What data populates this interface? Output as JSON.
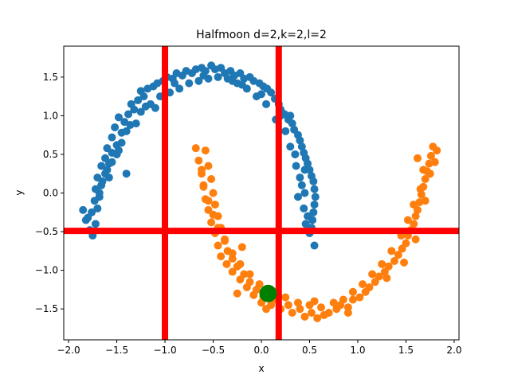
{
  "chart_data": {
    "type": "scatter",
    "title": "Halfmoon d=2,k=2,l=2",
    "xlabel": "x",
    "ylabel": "y",
    "xlim": [
      -2.05,
      2.05
    ],
    "ylim": [
      -1.9,
      1.9
    ],
    "xticks": [
      -2.0,
      -1.5,
      -1.0,
      -0.5,
      0.0,
      0.5,
      1.0,
      1.5,
      2.0
    ],
    "xtick_labels": [
      "−2.0",
      "−1.5",
      "−1.0",
      "−0.5",
      "0.0",
      "0.5",
      "1.0",
      "1.5",
      "2.0"
    ],
    "yticks": [
      -1.5,
      -1.0,
      -0.5,
      0.0,
      0.5,
      1.0,
      1.5
    ],
    "ytick_labels": [
      "−1.5",
      "−1.0",
      "−0.5",
      "0.0",
      "0.5",
      "1.0",
      "1.5"
    ],
    "grid": false,
    "series": [
      {
        "color": "#1f77b4",
        "points": [
          [
            -1.85,
            -0.22
          ],
          [
            -1.82,
            -0.35
          ],
          [
            -1.78,
            -0.48
          ],
          [
            -1.75,
            -0.55
          ],
          [
            -1.72,
            -0.4
          ],
          [
            -1.7,
            -0.2
          ],
          [
            -1.68,
            -0.05
          ],
          [
            -1.72,
            0.05
          ],
          [
            -1.66,
            0.1
          ],
          [
            -1.7,
            0.2
          ],
          [
            -1.62,
            0.25
          ],
          [
            -1.66,
            0.35
          ],
          [
            -1.58,
            0.38
          ],
          [
            -1.62,
            0.45
          ],
          [
            -1.55,
            0.52
          ],
          [
            -1.6,
            0.58
          ],
          [
            -1.5,
            0.62
          ],
          [
            -1.55,
            0.72
          ],
          [
            -1.45,
            0.78
          ],
          [
            -1.52,
            0.85
          ],
          [
            -1.42,
            0.92
          ],
          [
            -1.48,
            0.98
          ],
          [
            -1.38,
            1.02
          ],
          [
            -1.32,
            1.08
          ],
          [
            -1.35,
            1.15
          ],
          [
            -1.28,
            1.2
          ],
          [
            -1.22,
            1.25
          ],
          [
            -1.25,
            1.32
          ],
          [
            -1.18,
            1.35
          ],
          [
            -1.12,
            1.38
          ],
          [
            -1.08,
            1.42
          ],
          [
            -1.02,
            1.45
          ],
          [
            -0.98,
            1.5
          ],
          [
            -0.92,
            1.48
          ],
          [
            -0.88,
            1.55
          ],
          [
            -0.82,
            1.52
          ],
          [
            -0.78,
            1.58
          ],
          [
            -0.72,
            1.55
          ],
          [
            -0.68,
            1.6
          ],
          [
            -0.62,
            1.62
          ],
          [
            -0.58,
            1.58
          ],
          [
            -0.52,
            1.65
          ],
          [
            -0.48,
            1.6
          ],
          [
            -0.42,
            1.62
          ],
          [
            -0.38,
            1.55
          ],
          [
            -0.32,
            1.58
          ],
          [
            -0.28,
            1.52
          ],
          [
            -0.22,
            1.55
          ],
          [
            -0.18,
            1.48
          ],
          [
            -0.12,
            1.5
          ],
          [
            -0.08,
            1.45
          ],
          [
            -0.02,
            1.42
          ],
          [
            0.02,
            1.38
          ],
          [
            0.06,
            1.35
          ],
          [
            0.1,
            1.3
          ],
          [
            0.14,
            1.22
          ],
          [
            0.18,
            1.15
          ],
          [
            0.2,
            1.08
          ],
          [
            0.24,
            1.02
          ],
          [
            0.28,
            0.95
          ],
          [
            0.32,
            0.9
          ],
          [
            0.34,
            0.82
          ],
          [
            0.38,
            0.75
          ],
          [
            0.4,
            0.68
          ],
          [
            0.42,
            0.6
          ],
          [
            0.44,
            0.52
          ],
          [
            0.46,
            0.45
          ],
          [
            0.48,
            0.38
          ],
          [
            0.5,
            0.3
          ],
          [
            0.52,
            0.22
          ],
          [
            0.54,
            0.15
          ],
          [
            0.55,
            0.05
          ],
          [
            0.56,
            -0.05
          ],
          [
            0.55,
            -0.15
          ],
          [
            0.54,
            -0.25
          ],
          [
            0.53,
            -0.35
          ],
          [
            0.52,
            -0.45
          ],
          [
            0.5,
            -0.52
          ],
          [
            0.46,
            -0.4
          ],
          [
            0.48,
            -0.3
          ],
          [
            0.44,
            -0.2
          ],
          [
            0.45,
            0.0
          ],
          [
            0.42,
            0.1
          ],
          [
            0.4,
            0.2
          ],
          [
            0.36,
            0.35
          ],
          [
            0.3,
            0.6
          ],
          [
            0.25,
            0.8
          ],
          [
            0.15,
            0.95
          ],
          [
            0.05,
            1.15
          ],
          [
            -0.05,
            1.25
          ],
          [
            -0.15,
            1.35
          ],
          [
            -0.25,
            1.42
          ],
          [
            -0.35,
            1.48
          ],
          [
            -0.45,
            1.5
          ],
          [
            -0.55,
            1.48
          ],
          [
            -0.65,
            1.45
          ],
          [
            -0.75,
            1.42
          ],
          [
            -0.85,
            1.35
          ],
          [
            -0.95,
            1.3
          ],
          [
            -1.05,
            1.25
          ],
          [
            -1.15,
            1.15
          ],
          [
            -1.25,
            1.05
          ],
          [
            -1.3,
            0.9
          ],
          [
            -1.4,
            0.8
          ],
          [
            -1.45,
            0.65
          ],
          [
            -1.5,
            0.5
          ],
          [
            -1.55,
            0.4
          ],
          [
            -1.6,
            0.3
          ],
          [
            -1.65,
            0.15
          ],
          [
            -1.68,
            0.0
          ],
          [
            -1.73,
            -0.1
          ],
          [
            -1.76,
            -0.25
          ],
          [
            -1.8,
            -0.32
          ],
          [
            -1.4,
            0.25
          ],
          [
            -1.1,
            1.1
          ],
          [
            -0.2,
            1.4
          ],
          [
            0.3,
            1.0
          ],
          [
            0.35,
            0.5
          ],
          [
            0.38,
            -0.05
          ],
          [
            0.55,
            -0.68
          ],
          [
            -1.58,
            0.2
          ],
          [
            -1.48,
            0.55
          ],
          [
            -1.36,
            0.88
          ],
          [
            -1.2,
            1.12
          ],
          [
            -0.9,
            1.42
          ],
          [
            -0.6,
            1.52
          ],
          [
            -0.3,
            1.45
          ],
          [
            0.0,
            1.28
          ],
          [
            0.2,
            1.0
          ],
          [
            0.45,
            0.3
          ]
        ]
      },
      {
        "color": "#ff7f0e",
        "points": [
          [
            -0.68,
            0.58
          ],
          [
            -0.58,
            0.55
          ],
          [
            -0.65,
            0.42
          ],
          [
            -0.55,
            0.35
          ],
          [
            -0.62,
            0.25
          ],
          [
            -0.52,
            0.18
          ],
          [
            -0.6,
            0.08
          ],
          [
            -0.5,
            0.0
          ],
          [
            -0.58,
            -0.08
          ],
          [
            -0.48,
            -0.15
          ],
          [
            -0.55,
            -0.22
          ],
          [
            -0.45,
            -0.3
          ],
          [
            -0.52,
            -0.38
          ],
          [
            -0.42,
            -0.45
          ],
          [
            -0.48,
            -0.52
          ],
          [
            -0.38,
            -0.6
          ],
          [
            -0.45,
            -0.68
          ],
          [
            -0.35,
            -0.75
          ],
          [
            -0.42,
            -0.82
          ],
          [
            -0.3,
            -0.85
          ],
          [
            -0.36,
            -0.92
          ],
          [
            -0.25,
            -0.95
          ],
          [
            -0.3,
            -1.02
          ],
          [
            -0.18,
            -1.05
          ],
          [
            -0.22,
            -1.12
          ],
          [
            -0.12,
            -1.15
          ],
          [
            -0.15,
            -1.22
          ],
          [
            -0.05,
            -1.25
          ],
          [
            -0.08,
            -1.32
          ],
          [
            0.02,
            -1.35
          ],
          [
            0.0,
            -1.42
          ],
          [
            0.1,
            -1.45
          ],
          [
            0.15,
            -1.38
          ],
          [
            0.2,
            -1.5
          ],
          [
            0.28,
            -1.45
          ],
          [
            0.32,
            -1.55
          ],
          [
            0.4,
            -1.5
          ],
          [
            0.45,
            -1.6
          ],
          [
            0.52,
            -1.55
          ],
          [
            0.58,
            -1.62
          ],
          [
            0.65,
            -1.58
          ],
          [
            0.7,
            -1.55
          ],
          [
            0.78,
            -1.5
          ],
          [
            0.82,
            -1.45
          ],
          [
            0.9,
            -1.48
          ],
          [
            0.95,
            -1.38
          ],
          [
            1.02,
            -1.35
          ],
          [
            1.08,
            -1.28
          ],
          [
            1.12,
            -1.22
          ],
          [
            1.18,
            -1.15
          ],
          [
            1.22,
            -1.08
          ],
          [
            1.28,
            -1.02
          ],
          [
            1.32,
            -0.95
          ],
          [
            1.38,
            -0.88
          ],
          [
            1.42,
            -0.8
          ],
          [
            1.46,
            -0.72
          ],
          [
            1.5,
            -0.65
          ],
          [
            1.52,
            -0.55
          ],
          [
            1.55,
            -0.48
          ],
          [
            1.58,
            -0.4
          ],
          [
            1.6,
            -0.3
          ],
          [
            1.62,
            -0.22
          ],
          [
            1.64,
            -0.12
          ],
          [
            1.66,
            -0.02
          ],
          [
            1.68,
            0.08
          ],
          [
            1.7,
            0.18
          ],
          [
            1.72,
            0.28
          ],
          [
            1.74,
            0.38
          ],
          [
            1.76,
            0.48
          ],
          [
            1.78,
            0.6
          ],
          [
            1.82,
            0.55
          ],
          [
            1.75,
            0.25
          ],
          [
            1.68,
            0.3
          ],
          [
            1.65,
            0.05
          ],
          [
            1.58,
            -0.15
          ],
          [
            1.52,
            -0.35
          ],
          [
            1.45,
            -0.55
          ],
          [
            1.35,
            -0.75
          ],
          [
            1.25,
            -0.92
          ],
          [
            1.15,
            -1.05
          ],
          [
            1.05,
            -1.18
          ],
          [
            0.95,
            -1.28
          ],
          [
            0.85,
            -1.38
          ],
          [
            0.75,
            -1.42
          ],
          [
            0.62,
            -1.48
          ],
          [
            0.5,
            -1.45
          ],
          [
            0.38,
            -1.42
          ],
          [
            0.25,
            -1.35
          ],
          [
            0.12,
            -1.28
          ],
          [
            -0.02,
            -1.18
          ],
          [
            -0.12,
            -1.05
          ],
          [
            -0.22,
            -0.92
          ],
          [
            -0.3,
            -0.78
          ],
          [
            -0.38,
            -0.62
          ],
          [
            -0.45,
            -0.45
          ],
          [
            -0.5,
            -0.28
          ],
          [
            -0.55,
            -0.1
          ],
          [
            -0.6,
            0.1
          ],
          [
            -0.62,
            0.3
          ],
          [
            -0.2,
            -0.7
          ],
          [
            0.05,
            -1.5
          ],
          [
            0.55,
            -1.4
          ],
          [
            0.9,
            -1.55
          ],
          [
            1.3,
            -1.1
          ],
          [
            1.48,
            -0.9
          ],
          [
            1.6,
            -0.6
          ],
          [
            1.7,
            -0.1
          ],
          [
            1.8,
            0.4
          ],
          [
            1.62,
            0.45
          ],
          [
            -0.25,
            -1.3
          ]
        ]
      }
    ],
    "highlight_points": [
      {
        "x": 0.07,
        "y": -1.3,
        "color": "#008000"
      }
    ],
    "vertical_lines": [
      {
        "x": -1.0,
        "color": "#ff0000"
      },
      {
        "x": 0.18,
        "color": "#ff0000"
      }
    ],
    "horizontal_lines": [
      {
        "y": -0.49,
        "color": "#ff0000"
      }
    ]
  }
}
